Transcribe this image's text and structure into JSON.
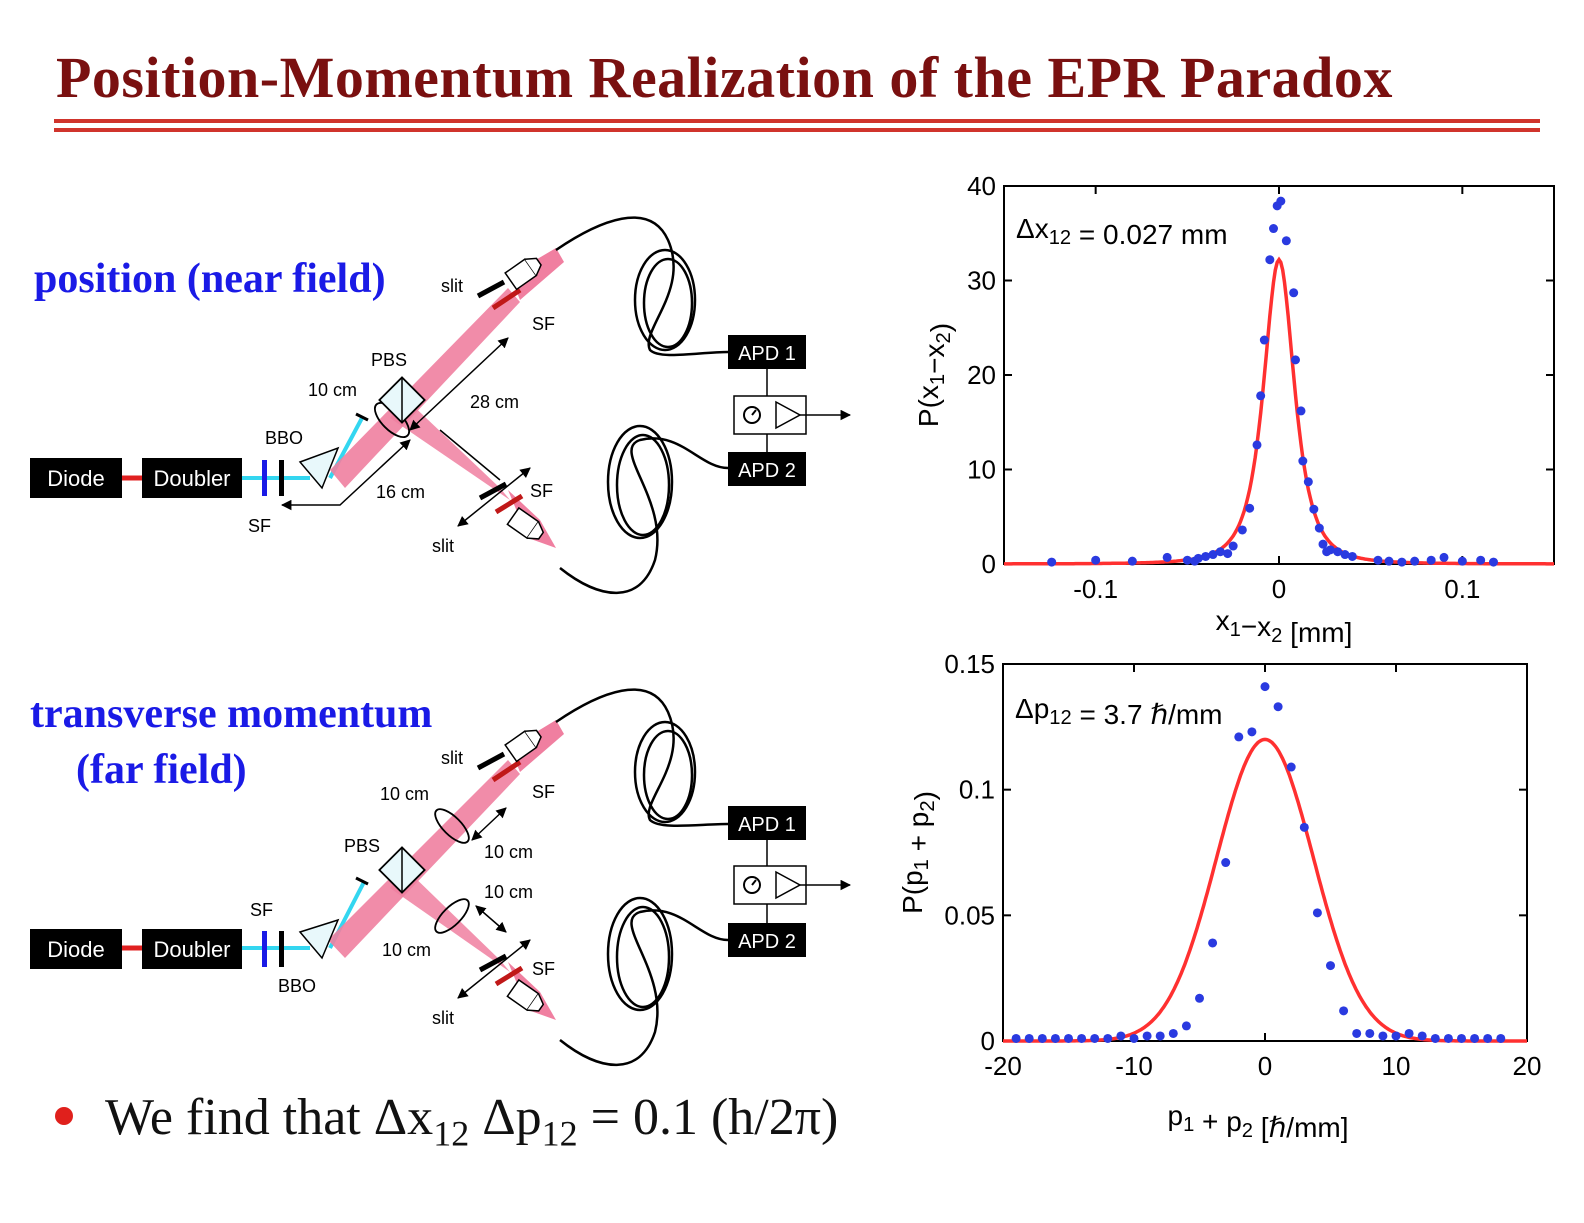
{
  "title": "Position-Momentum Realization of the EPR Paradox",
  "sections": {
    "position": "position (near field)",
    "momentum_line1": "transverse momentum",
    "momentum_line2": "(far field)"
  },
  "setup_top": {
    "diode": "Diode",
    "doubler": "Doubler",
    "bbo": "BBO",
    "pbs": "PBS",
    "slit_upper": "slit",
    "slit_lower": "slit",
    "sf_upper": "SF",
    "sf_lower": "SF",
    "sf_input": "SF",
    "dist_lens": "10 cm",
    "dist_arm": "28 cm",
    "dist_back": "16 cm",
    "apd1": "APD 1",
    "apd2": "APD 2"
  },
  "setup_bottom": {
    "diode": "Diode",
    "doubler": "Doubler",
    "bbo": "BBO",
    "pbs": "PBS",
    "slit_upper": "slit",
    "slit_lower": "slit",
    "sf_upper": "SF",
    "sf_lower": "SF",
    "sf_input": "SF",
    "dist_lens_upper": "10 cm",
    "dist_slit_upper": "10 cm",
    "dist_slit_lower": "10 cm",
    "dist_lens_lower": "10 cm",
    "apd1": "APD 1",
    "apd2": "APD 2"
  },
  "bullet": {
    "text_start": "We find that Δx",
    "sub1": "12",
    "text_mid": " Δp",
    "sub2": "12",
    "text_end": " = 0.1 (h/2π)"
  },
  "colors": {
    "title": "#7a1010",
    "rule": "#d0342c",
    "label": "#1a1ae6",
    "beam": "#f07fa0",
    "pump": "#33d6f0",
    "fit": "#ff3030",
    "points": "#2a3ae0"
  },
  "chart_data": [
    {
      "type": "scatter",
      "annotation": "Δx12 = 0.027 mm",
      "xlabel": "x1−x2 [mm]",
      "ylabel": "P(x1−x2)",
      "xlim": [
        -0.15,
        0.15
      ],
      "ylim": [
        0,
        40
      ],
      "xticks": [
        -0.1,
        0,
        0.1
      ],
      "xtick_labels": [
        "-0.1",
        "0",
        "0.1"
      ],
      "yticks": [
        0,
        10,
        20,
        30,
        40
      ],
      "ytick_labels": [
        "0",
        "10",
        "20",
        "30",
        "40"
      ],
      "fit_curve": {
        "shape": "lorentzian-like",
        "peak": 32.2,
        "center": 0,
        "hwhm": 0.0135
      },
      "points": [
        [
          -0.124,
          0.2
        ],
        [
          -0.1,
          0.4
        ],
        [
          -0.08,
          0.3
        ],
        [
          -0.061,
          0.7
        ],
        [
          -0.05,
          0.4
        ],
        [
          -0.046,
          0.3
        ],
        [
          -0.044,
          0.6
        ],
        [
          -0.04,
          0.8
        ],
        [
          -0.036,
          1.0
        ],
        [
          -0.032,
          1.3
        ],
        [
          -0.028,
          1.1
        ],
        [
          -0.025,
          1.9
        ],
        [
          -0.02,
          3.6
        ],
        [
          -0.016,
          5.9
        ],
        [
          -0.012,
          12.6
        ],
        [
          -0.01,
          17.8
        ],
        [
          -0.008,
          23.7
        ],
        [
          -0.005,
          32.2
        ],
        [
          -0.003,
          35.5
        ],
        [
          -0.001,
          37.9
        ],
        [
          0.001,
          38.4
        ],
        [
          0.004,
          34.2
        ],
        [
          0.008,
          28.7
        ],
        [
          0.009,
          21.6
        ],
        [
          0.012,
          16.2
        ],
        [
          0.013,
          10.9
        ],
        [
          0.016,
          8.7
        ],
        [
          0.019,
          5.8
        ],
        [
          0.022,
          3.8
        ],
        [
          0.024,
          2.1
        ],
        [
          0.026,
          1.3
        ],
        [
          0.028,
          1.5
        ],
        [
          0.032,
          1.3
        ],
        [
          0.036,
          1.0
        ],
        [
          0.04,
          0.8
        ],
        [
          0.054,
          0.4
        ],
        [
          0.06,
          0.3
        ],
        [
          0.067,
          0.2
        ],
        [
          0.074,
          0.3
        ],
        [
          0.083,
          0.4
        ],
        [
          0.09,
          0.7
        ],
        [
          0.1,
          0.3
        ],
        [
          0.11,
          0.4
        ],
        [
          0.117,
          0.2
        ]
      ]
    },
    {
      "type": "scatter",
      "annotation": "Δp12 = 3.7 ℏ/mm",
      "xlabel": "p1 + p2 [ℏ/mm]",
      "ylabel": "P(p1 + p2)",
      "xlim": [
        -20,
        20
      ],
      "ylim": [
        0,
        0.15
      ],
      "xticks": [
        -20,
        -10,
        0,
        10,
        20
      ],
      "xtick_labels": [
        "-20",
        "-10",
        "0",
        "10",
        "20"
      ],
      "yticks": [
        0,
        0.05,
        0.1,
        0.15
      ],
      "ytick_labels": [
        "0",
        "0.05",
        "0.1",
        "0.15"
      ],
      "fit_curve": {
        "shape": "gaussian",
        "peak": 0.12,
        "center": 0,
        "sigma": 3.7
      },
      "points": [
        [
          -19,
          0.001
        ],
        [
          -18,
          0.001
        ],
        [
          -17,
          0.001
        ],
        [
          -16,
          0.001
        ],
        [
          -15,
          0.001
        ],
        [
          -14,
          0.001
        ],
        [
          -13,
          0.001
        ],
        [
          -12,
          0.001
        ],
        [
          -11,
          0.002
        ],
        [
          -10,
          0.001
        ],
        [
          -9,
          0.002
        ],
        [
          -8,
          0.002
        ],
        [
          -7,
          0.003
        ],
        [
          -6,
          0.006
        ],
        [
          -5,
          0.017
        ],
        [
          -4,
          0.039
        ],
        [
          -3,
          0.071
        ],
        [
          -2,
          0.121
        ],
        [
          -1,
          0.123
        ],
        [
          0,
          0.141
        ],
        [
          1,
          0.133
        ],
        [
          2,
          0.109
        ],
        [
          3,
          0.085
        ],
        [
          4,
          0.051
        ],
        [
          5,
          0.03
        ],
        [
          6,
          0.012
        ],
        [
          7,
          0.003
        ],
        [
          8,
          0.003
        ],
        [
          9,
          0.002
        ],
        [
          10,
          0.002
        ],
        [
          11,
          0.003
        ],
        [
          12,
          0.002
        ],
        [
          13,
          0.001
        ],
        [
          14,
          0.001
        ],
        [
          15,
          0.001
        ],
        [
          16,
          0.001
        ],
        [
          17,
          0.001
        ],
        [
          18,
          0.001
        ]
      ]
    }
  ]
}
